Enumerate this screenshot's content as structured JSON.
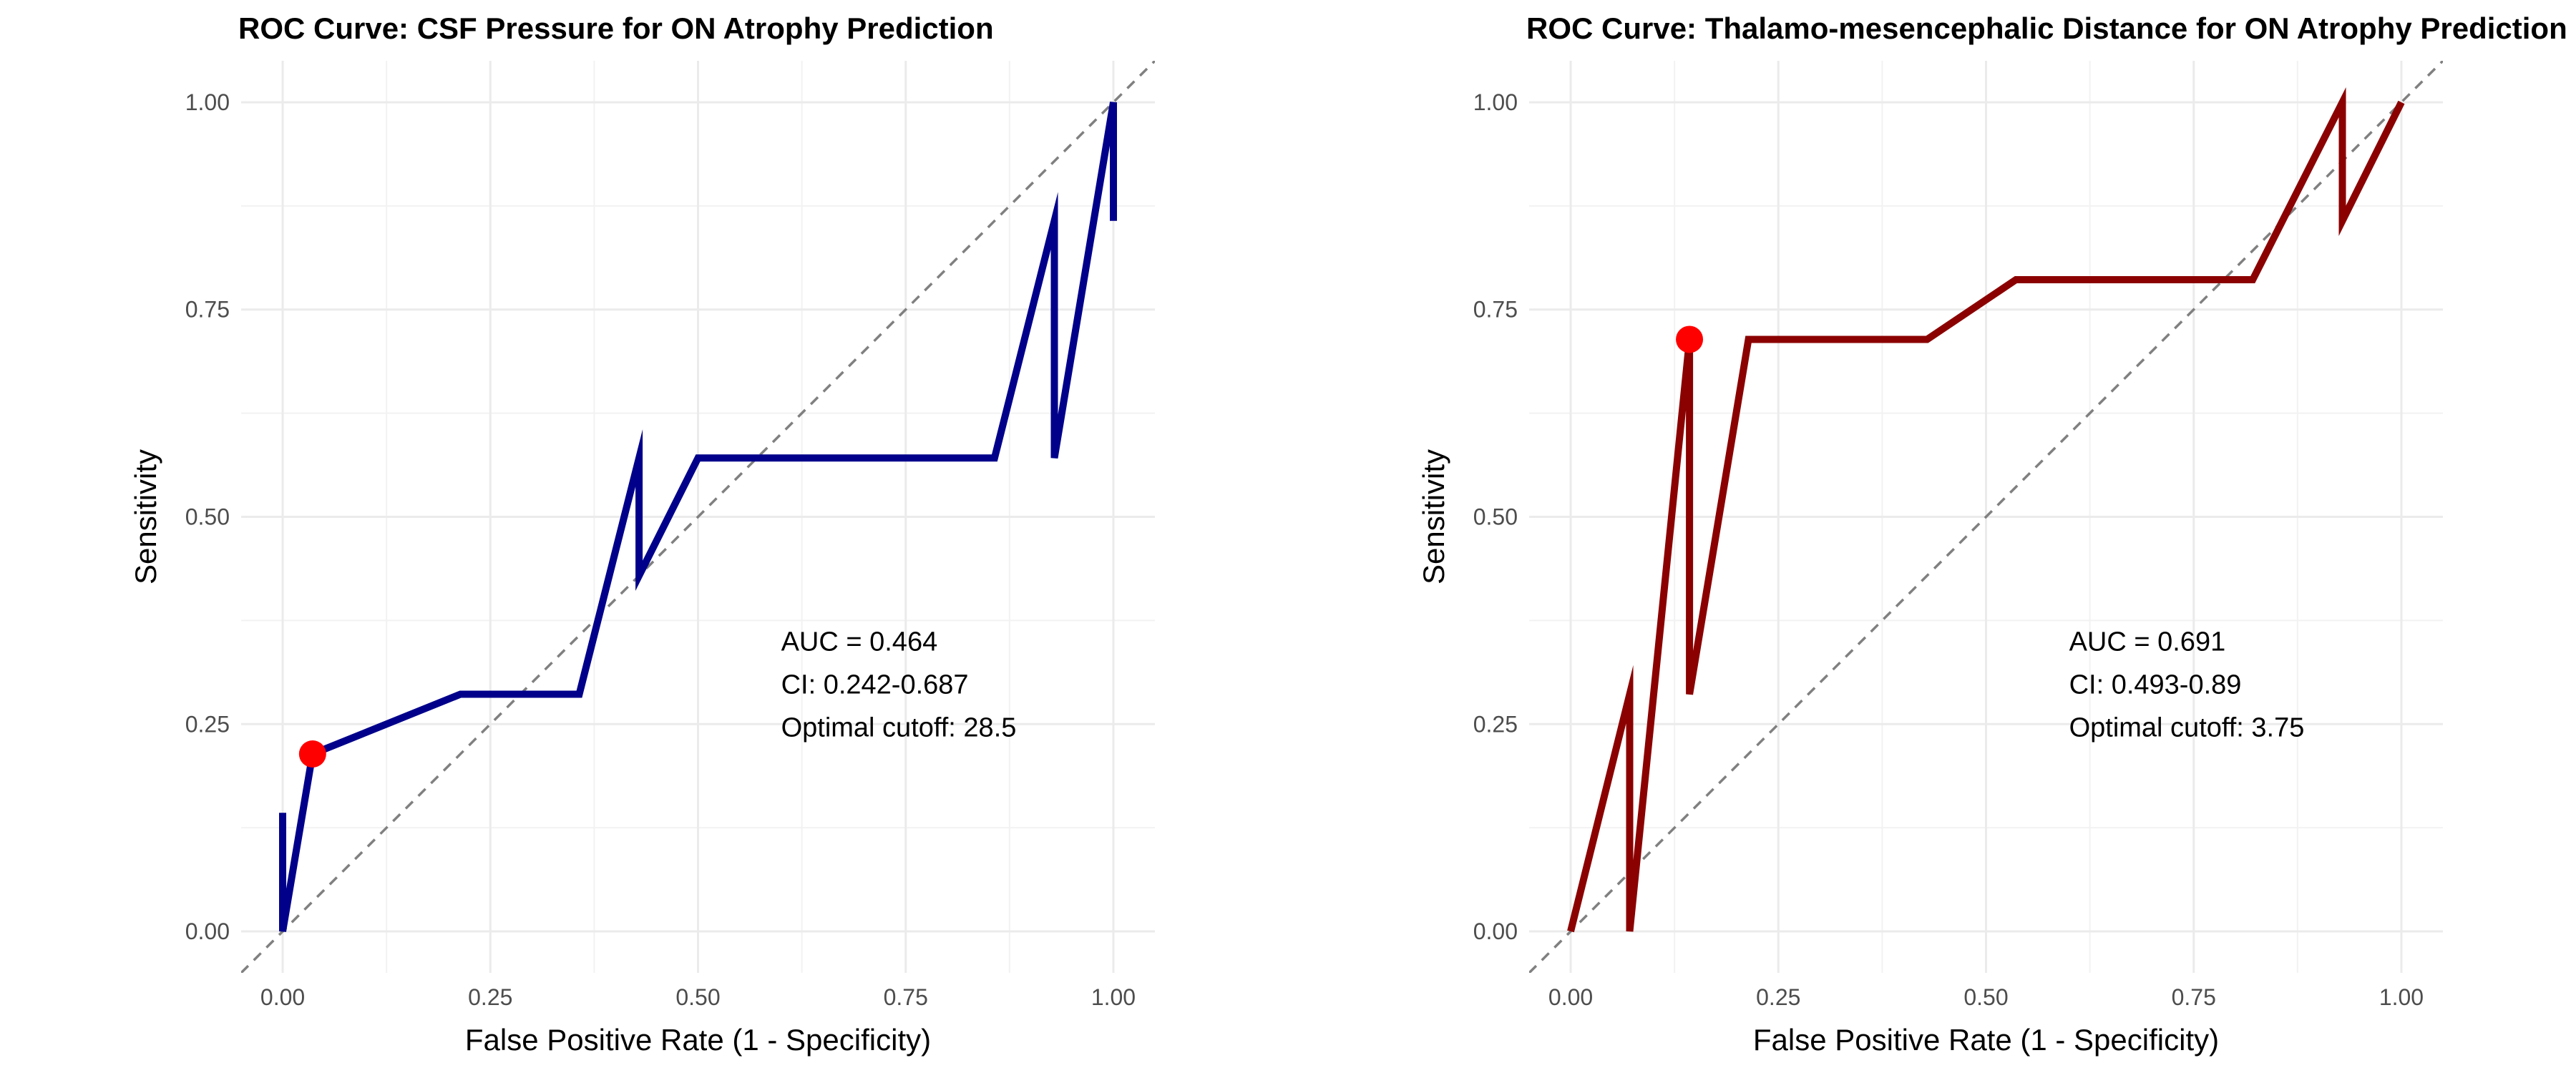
{
  "chart_data": [
    {
      "type": "line",
      "title": "ROC Curve: CSF Pressure for ON Atrophy Prediction",
      "xlabel": "False Positive Rate (1 - Specificity)",
      "ylabel": "Sensitivity",
      "xlim": [
        0,
        1
      ],
      "ylim": [
        0,
        1
      ],
      "xticks": [
        "0.00",
        "0.25",
        "0.50",
        "0.75",
        "1.00"
      ],
      "yticks": [
        "0.00",
        "0.25",
        "0.50",
        "0.75",
        "1.00"
      ],
      "grid": true,
      "reference_line": "dashed diagonal y = x",
      "color": "#00008b",
      "series": [
        {
          "x": [
            0,
            0,
            0.036,
            0.214,
            0.357,
            0.429,
            0.429,
            0.5,
            0.857,
            0.929,
            0.929,
            1,
            1
          ],
          "y": [
            0.143,
            0,
            0.214,
            0.286,
            0.286,
            0.571,
            0.429,
            0.571,
            0.571,
            0.857,
            0.571,
            1,
            0.857
          ]
        }
      ],
      "optimal_point": {
        "x": 0.036,
        "y": 0.214,
        "color": "#ff0000"
      },
      "annotations": [
        "AUC = 0.464",
        "CI: 0.242-0.687",
        "Optimal cutoff: 28.5"
      ]
    },
    {
      "type": "line",
      "title": "ROC Curve: Thalamo-mesencephalic Distance for ON Atrophy Prediction",
      "xlabel": "False Positive Rate (1 - Specificity)",
      "ylabel": "Sensitivity",
      "xlim": [
        0,
        1
      ],
      "ylim": [
        0,
        1
      ],
      "xticks": [
        "0.00",
        "0.25",
        "0.50",
        "0.75",
        "1.00"
      ],
      "yticks": [
        "0.00",
        "0.25",
        "0.50",
        "0.75",
        "1.00"
      ],
      "grid": true,
      "reference_line": "dashed diagonal y = x",
      "color": "#8b0000",
      "series": [
        {
          "x": [
            0,
            0.071,
            0.071,
            0.143,
            0.143,
            0.214,
            0.429,
            0.536,
            0.821,
            0.929,
            0.929,
            1
          ],
          "y": [
            0,
            0.286,
            0,
            0.714,
            0.286,
            0.714,
            0.714,
            0.786,
            0.786,
            1,
            0.857,
            1
          ]
        }
      ],
      "optimal_point": {
        "x": 0.143,
        "y": 0.714,
        "color": "#ff0000"
      },
      "annotations": [
        "AUC = 0.691",
        "CI: 0.493-0.89",
        "Optimal cutoff: 3.75"
      ]
    }
  ]
}
